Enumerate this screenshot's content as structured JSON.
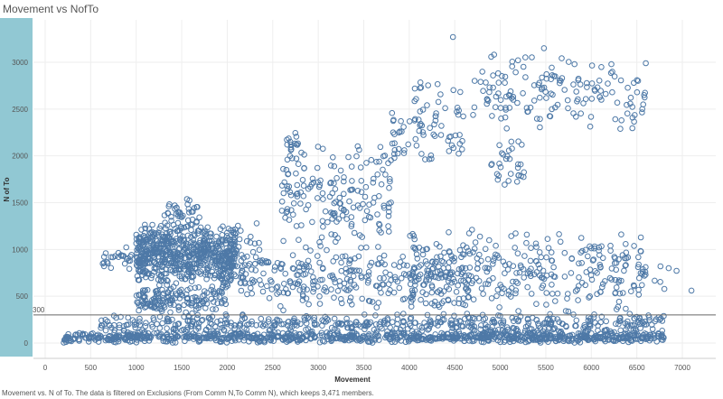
{
  "title": "Movement vs NofTo",
  "footer": "Movement vs. N of To. The data is filtered on Exclusions (From Comm N,To Comm N), which keeps 3,471 members.",
  "colors": {
    "side_band": "#91c8d3",
    "marker": "#4e79a7",
    "reference_line": "#666666"
  },
  "chart_data": {
    "type": "scatter",
    "xlabel": "Movement",
    "ylabel": "N of To",
    "xlim": [
      -100,
      7250
    ],
    "ylim": [
      -100,
      3350
    ],
    "x_ticks": [
      0,
      500,
      1000,
      1500,
      2000,
      2500,
      3000,
      3500,
      4000,
      4500,
      5000,
      5500,
      6000,
      6500,
      7000
    ],
    "y_ticks": [
      0,
      500,
      1000,
      1500,
      2000,
      2500,
      3000
    ],
    "x_tick_labels": [
      "0",
      "500",
      "1000",
      "1500",
      "2000",
      "2500",
      "3000",
      "3500",
      "4000",
      "4500",
      "5000",
      "5500",
      "6000",
      "6500",
      "7000"
    ],
    "y_tick_labels": [
      "0",
      "500",
      "1000",
      "1500",
      "2000",
      "2500",
      "3000"
    ],
    "reference_line": {
      "value": 300,
      "label": "300"
    },
    "marker": "hollow-circle",
    "grid": true,
    "clusters": [
      {
        "x_range": [
          200,
          6800
        ],
        "y_range": [
          0,
          120
        ],
        "count": 900
      },
      {
        "x_range": [
          600,
          6800
        ],
        "y_range": [
          80,
          320
        ],
        "count": 500
      },
      {
        "x_range": [
          1000,
          2100
        ],
        "y_range": [
          600,
          1300
        ],
        "count": 650
      },
      {
        "x_range": [
          1300,
          1700
        ],
        "y_range": [
          1200,
          1550
        ],
        "count": 40
      },
      {
        "x_range": [
          620,
          800
        ],
        "y_range": [
          800,
          1000
        ],
        "count": 12
      },
      {
        "x_range": [
          800,
          950
        ],
        "y_range": [
          750,
          1050
        ],
        "count": 15
      },
      {
        "x_range": [
          1000,
          2000
        ],
        "y_range": [
          300,
          650
        ],
        "count": 160
      },
      {
        "x_range": [
          2000,
          2400
        ],
        "y_range": [
          400,
          1300
        ],
        "count": 60
      },
      {
        "x_range": [
          2300,
          4700
        ],
        "y_range": [
          300,
          1000
        ],
        "count": 250
      },
      {
        "x_range": [
          2600,
          3800
        ],
        "y_range": [
          900,
          2200
        ],
        "count": 180
      },
      {
        "x_range": [
          2650,
          2780
        ],
        "y_range": [
          1900,
          2350
        ],
        "count": 15
      },
      {
        "x_range": [
          3800,
          4600
        ],
        "y_range": [
          1800,
          2900
        ],
        "count": 80
      },
      {
        "x_range": [
          4000,
          6600
        ],
        "y_range": [
          250,
          1250
        ],
        "count": 320
      },
      {
        "x_range": [
          4700,
          6600
        ],
        "y_range": [
          2200,
          3150
        ],
        "count": 150
      },
      {
        "x_range": [
          4900,
          5300
        ],
        "y_range": [
          1600,
          2300
        ],
        "count": 30
      },
      {
        "x_range": [
          6500,
          7150
        ],
        "y_range": [
          500,
          900
        ],
        "count": 8
      }
    ],
    "points": [
      {
        "x": 4480,
        "y": 3270
      },
      {
        "x": 5480,
        "y": 3150
      },
      {
        "x": 7100,
        "y": 560
      },
      {
        "x": 6850,
        "y": 800
      },
      {
        "x": 6760,
        "y": 820
      },
      {
        "x": 6580,
        "y": 2650
      },
      {
        "x": 6560,
        "y": 2500
      },
      {
        "x": 6570,
        "y": 2550
      },
      {
        "x": 6230,
        "y": 2900
      },
      {
        "x": 3730,
        "y": 840
      }
    ]
  }
}
